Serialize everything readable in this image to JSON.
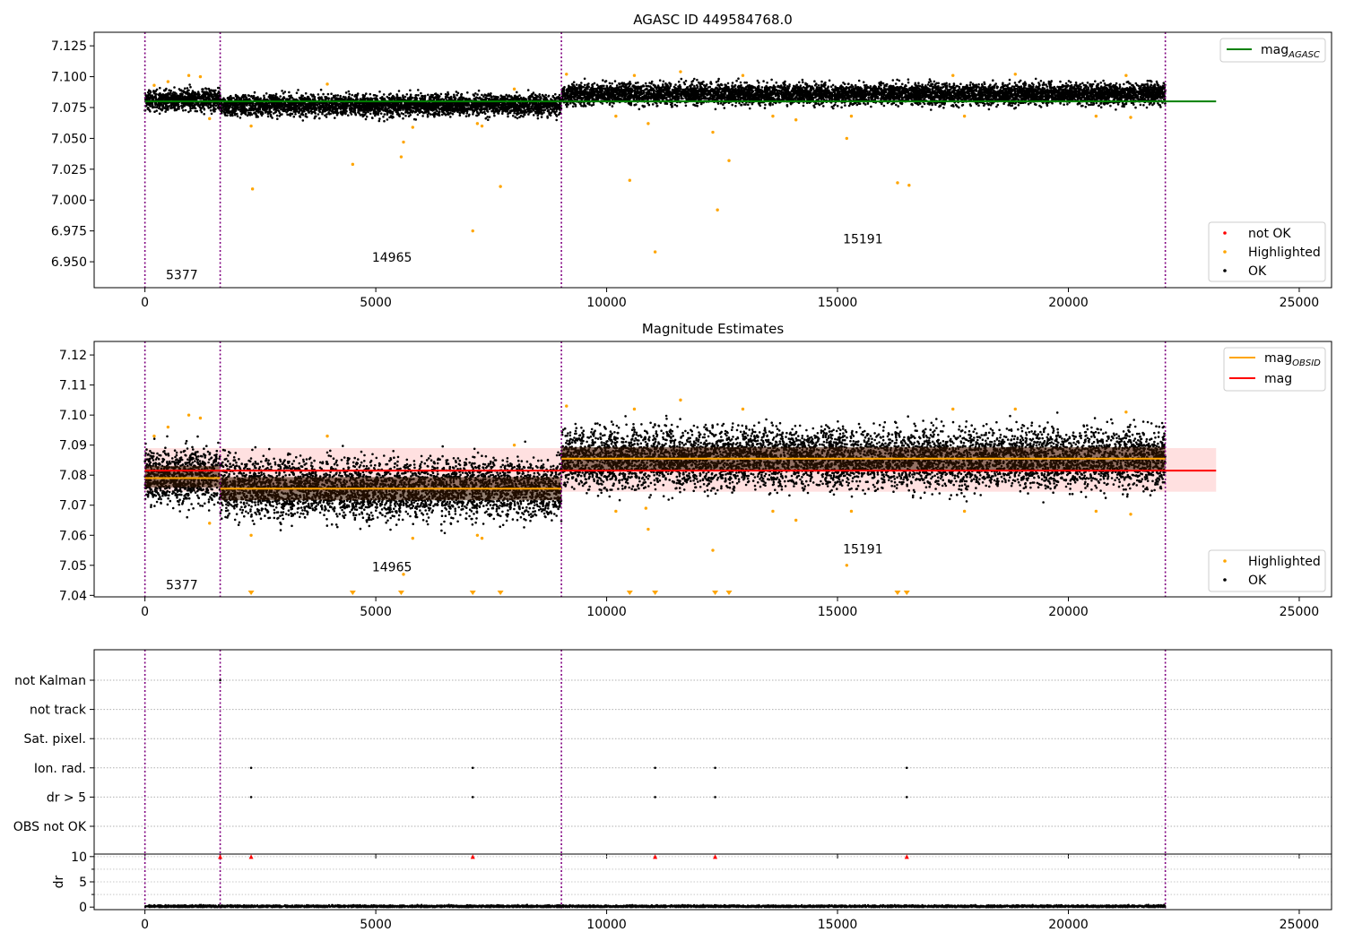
{
  "chart_data": [
    {
      "type": "scatter",
      "panel": "top",
      "title": "AGASC ID 449584768.0",
      "xlim": [
        -1100,
        25700
      ],
      "ylim": [
        6.929,
        7.136
      ],
      "x_ticks": [
        0,
        5000,
        10000,
        15000,
        20000,
        25000
      ],
      "y_ticks": [
        6.95,
        6.975,
        7.0,
        7.025,
        7.05,
        7.075,
        7.1,
        7.125
      ],
      "obsid_boundaries": [
        0,
        1630,
        9020,
        22100
      ],
      "obsid_labels": [
        {
          "text": "5377",
          "x": 800,
          "y": 6.936
        },
        {
          "text": "14965",
          "x": 5350,
          "y": 6.95
        },
        {
          "text": "15191",
          "x": 15550,
          "y": 6.965
        }
      ],
      "reference_line": {
        "name": "mag",
        "subscript": "AGASC",
        "y": 7.08,
        "x_range": [
          0,
          23200
        ],
        "color": "#008000"
      },
      "dense_bands": [
        {
          "x_range": [
            0,
            1630
          ],
          "center": 7.081,
          "spread": 0.006
        },
        {
          "x_range": [
            1630,
            9020
          ],
          "center": 7.077,
          "spread": 0.006
        },
        {
          "x_range": [
            9020,
            22100
          ],
          "center": 7.086,
          "spread": 0.006
        }
      ],
      "highlighted_points": [
        [
          200,
          7.093
        ],
        [
          500,
          7.096
        ],
        [
          950,
          7.101
        ],
        [
          1200,
          7.1
        ],
        [
          1400,
          7.066
        ],
        [
          2300,
          7.06
        ],
        [
          2330,
          7.009
        ],
        [
          3950,
          7.094
        ],
        [
          4500,
          7.029
        ],
        [
          5550,
          7.035
        ],
        [
          5600,
          7.047
        ],
        [
          5800,
          7.059
        ],
        [
          7100,
          6.975
        ],
        [
          7200,
          7.062
        ],
        [
          7300,
          7.06
        ],
        [
          7700,
          7.011
        ],
        [
          8000,
          7.09
        ],
        [
          9130,
          7.102
        ],
        [
          10200,
          7.068
        ],
        [
          10500,
          7.016
        ],
        [
          10600,
          7.101
        ],
        [
          10900,
          7.062
        ],
        [
          11050,
          6.958
        ],
        [
          11600,
          7.104
        ],
        [
          12300,
          7.055
        ],
        [
          12400,
          6.992
        ],
        [
          12650,
          7.032
        ],
        [
          12950,
          7.101
        ],
        [
          13600,
          7.068
        ],
        [
          14100,
          7.065
        ],
        [
          15200,
          7.05
        ],
        [
          15300,
          7.068
        ],
        [
          16300,
          7.014
        ],
        [
          16550,
          7.012
        ],
        [
          17500,
          7.101
        ],
        [
          17750,
          7.068
        ],
        [
          18850,
          7.102
        ],
        [
          20600,
          7.068
        ],
        [
          21250,
          7.101
        ],
        [
          21350,
          7.067
        ]
      ],
      "legend_top": {
        "entries": [
          {
            "label": "mag",
            "subscript": "AGASC",
            "color": "#008000"
          }
        ],
        "position": "top-right"
      },
      "legend_bottom": {
        "entries": [
          {
            "label": "not OK",
            "color": "#ff0000"
          },
          {
            "label": "Highlighted",
            "color": "#ffa500"
          },
          {
            "label": "OK",
            "color": "#000000"
          }
        ],
        "position": "bottom-right"
      }
    },
    {
      "type": "scatter",
      "panel": "middle",
      "title": "Magnitude Estimates",
      "xlim": [
        -1100,
        25700
      ],
      "ylim": [
        7.0395,
        7.1245
      ],
      "x_ticks": [
        0,
        5000,
        10000,
        15000,
        20000,
        25000
      ],
      "y_ticks": [
        7.04,
        7.05,
        7.06,
        7.07,
        7.08,
        7.09,
        7.1,
        7.11,
        7.12
      ],
      "obsid_boundaries": [
        0,
        1630,
        9020,
        22100
      ],
      "obsid_labels": [
        {
          "text": "5377",
          "x": 800,
          "y": 7.042
        },
        {
          "text": "14965",
          "x": 5350,
          "y": 7.048
        },
        {
          "text": "15191",
          "x": 15550,
          "y": 7.054
        }
      ],
      "mean_mag": {
        "name": "mag",
        "y": 7.0815,
        "band": [
          7.0745,
          7.089
        ],
        "x_range": [
          0,
          23200
        ],
        "color": "#ff0000"
      },
      "obsid_mags": {
        "name": "mag",
        "subscript": "OBSID",
        "color": "#ffa500",
        "segments": [
          {
            "x_range": [
              0,
              1630
            ],
            "y": 7.079
          },
          {
            "x_range": [
              1630,
              9020
            ],
            "y": 7.0755
          },
          {
            "x_range": [
              9020,
              22100
            ],
            "y": 7.0855
          }
        ]
      },
      "dense_bands": [
        {
          "x_range": [
            0,
            1630
          ],
          "center": 7.0795,
          "spread": 0.0065
        },
        {
          "x_range": [
            1630,
            9020
          ],
          "center": 7.0755,
          "spread": 0.007
        },
        {
          "x_range": [
            9020,
            22100
          ],
          "center": 7.0855,
          "spread": 0.007
        }
      ],
      "highlighted_points": [
        [
          200,
          7.093
        ],
        [
          500,
          7.096
        ],
        [
          950,
          7.1
        ],
        [
          1200,
          7.099
        ],
        [
          1400,
          7.064
        ],
        [
          2300,
          7.06
        ],
        [
          3950,
          7.093
        ],
        [
          5600,
          7.047
        ],
        [
          5800,
          7.059
        ],
        [
          7200,
          7.06
        ],
        [
          7300,
          7.059
        ],
        [
          8000,
          7.09
        ],
        [
          9130,
          7.103
        ],
        [
          10200,
          7.068
        ],
        [
          10600,
          7.102
        ],
        [
          10850,
          7.069
        ],
        [
          10900,
          7.062
        ],
        [
          11600,
          7.105
        ],
        [
          12300,
          7.055
        ],
        [
          12950,
          7.102
        ],
        [
          13600,
          7.068
        ],
        [
          14100,
          7.065
        ],
        [
          15200,
          7.05
        ],
        [
          15300,
          7.068
        ],
        [
          17500,
          7.102
        ],
        [
          17750,
          7.068
        ],
        [
          18850,
          7.102
        ],
        [
          20600,
          7.068
        ],
        [
          21250,
          7.101
        ],
        [
          21350,
          7.067
        ]
      ],
      "below_range_markers": [
        2300,
        4500,
        5550,
        7100,
        7700,
        10500,
        11050,
        12350,
        12650,
        16300,
        16500
      ],
      "legend_top": {
        "entries": [
          {
            "label": "mag",
            "subscript": "OBSID",
            "color": "#ffa500"
          },
          {
            "label": "mag",
            "color": "#ff0000"
          }
        ],
        "position": "top-right"
      },
      "legend_bottom": {
        "entries": [
          {
            "label": "Highlighted",
            "color": "#ffa500"
          },
          {
            "label": "OK",
            "color": "#000000"
          }
        ],
        "position": "bottom-right"
      }
    },
    {
      "type": "scatter",
      "panel": "flags",
      "xlim": [
        -1100,
        25700
      ],
      "x_ticks": [
        0,
        5000,
        10000,
        15000,
        20000,
        25000
      ],
      "categories": [
        "not Kalman",
        "not track",
        "Sat. pixel.",
        "Ion. rad.",
        "dr > 5",
        "OBS not OK"
      ],
      "obsid_boundaries": [
        0,
        1630,
        9020,
        22100
      ],
      "points": [
        {
          "category": "not Kalman",
          "x": 1630
        },
        {
          "category": "Ion. rad.",
          "x": 2300
        },
        {
          "category": "Ion. rad.",
          "x": 7100
        },
        {
          "category": "Ion. rad.",
          "x": 11050
        },
        {
          "category": "Ion. rad.",
          "x": 12350
        },
        {
          "category": "Ion. rad.",
          "x": 16500
        },
        {
          "category": "dr > 5",
          "x": 2300
        },
        {
          "category": "dr > 5",
          "x": 7100
        },
        {
          "category": "dr > 5",
          "x": 11050
        },
        {
          "category": "dr > 5",
          "x": 12350
        },
        {
          "category": "dr > 5",
          "x": 16500
        }
      ]
    },
    {
      "type": "scatter",
      "panel": "dr",
      "ylabel": "dr",
      "xlim": [
        -1100,
        25700
      ],
      "ylim": [
        -0.5,
        10.5
      ],
      "x_ticks": [
        0,
        5000,
        10000,
        15000,
        20000,
        25000
      ],
      "y_ticks": [
        0,
        5,
        10
      ],
      "obsid_boundaries": [
        0,
        1630,
        9020,
        22100
      ],
      "baseline": {
        "x_range": [
          0,
          22100
        ],
        "center": 0.15,
        "spread": 0.15
      },
      "capped_markers": [
        1630,
        2300,
        7100,
        11050,
        12350,
        16500
      ]
    }
  ]
}
